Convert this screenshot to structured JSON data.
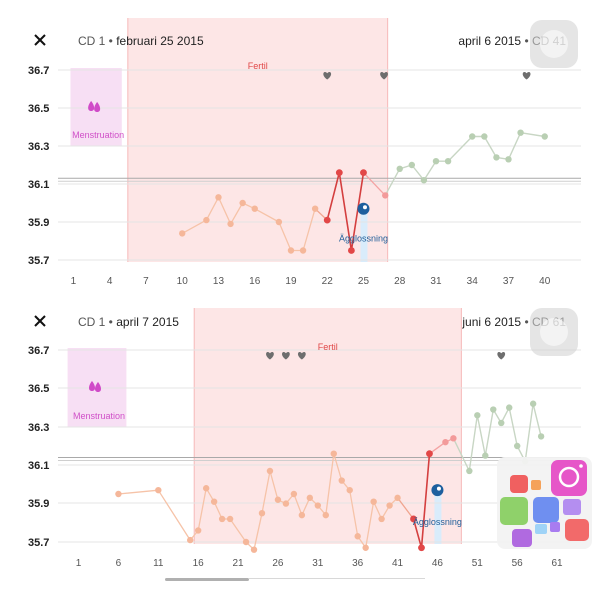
{
  "chart_data": [
    {
      "type": "line",
      "header": {
        "cd_left": "CD 1",
        "date_left": "februari 25 2015",
        "date_right": "april 6 2015",
        "cd_right": "CD 41"
      },
      "ylim": [
        35.67,
        36.78
      ],
      "yticks": [
        "36.7",
        "36.5",
        "36.3",
        "36.1",
        "35.9",
        "35.7"
      ],
      "xlim": [
        0.3,
        43
      ],
      "xticks": [
        "1",
        "4",
        "7",
        "10",
        "13",
        "16",
        "19",
        "22",
        "25",
        "28",
        "31",
        "34",
        "37",
        "40"
      ],
      "coverline": 36.13,
      "menstruation": {
        "label": "Menstruation",
        "days": [
          1,
          5
        ]
      },
      "fertile": {
        "label": "Fertil",
        "days": [
          5.5,
          27
        ]
      },
      "ovulation": {
        "label": "Ägglossning",
        "day": 25
      },
      "hearts": [
        22,
        26.7,
        38.5
      ],
      "points_pre": [
        [
          10,
          35.84
        ],
        [
          12,
          35.91
        ],
        [
          13,
          36.03
        ],
        [
          14,
          35.89
        ],
        [
          15,
          36.0
        ],
        [
          16,
          35.97
        ],
        [
          18,
          35.9
        ],
        [
          19,
          35.75
        ],
        [
          20,
          35.75
        ],
        [
          21,
          35.97
        ]
      ],
      "points_fertile": [
        [
          22,
          35.91
        ],
        [
          23,
          36.16
        ],
        [
          24,
          35.75
        ],
        [
          25,
          36.16
        ]
      ],
      "points_fertile_light": [
        [
          26.8,
          36.04
        ]
      ],
      "points_post": [
        [
          28,
          36.18
        ],
        [
          29,
          36.2
        ],
        [
          30,
          36.12
        ],
        [
          31,
          36.22
        ],
        [
          32,
          36.22
        ],
        [
          34,
          36.35
        ],
        [
          35,
          36.35
        ],
        [
          36,
          36.24
        ],
        [
          37,
          36.23
        ],
        [
          38,
          36.37
        ],
        [
          40,
          36.35
        ]
      ]
    },
    {
      "type": "line",
      "header": {
        "cd_left": "CD 1",
        "date_left": "april 7 2015",
        "date_right": "juni 6 2015",
        "cd_right": "CD 61"
      },
      "ylim": [
        35.67,
        36.78
      ],
      "yticks": [
        "36.7",
        "36.5",
        "36.3",
        "36.1",
        "35.9",
        "35.7"
      ],
      "xlim": [
        -0.7,
        64
      ],
      "xticks": [
        "1",
        "6",
        "11",
        "16",
        "21",
        "26",
        "31",
        "36",
        "41",
        "46",
        "51",
        "56",
        "61"
      ],
      "coverline": 36.14,
      "menstruation": {
        "label": "Menstruation",
        "days": [
          0,
          7
        ]
      },
      "fertile": {
        "label": "Fertil",
        "days": [
          15.5,
          49
        ]
      },
      "ovulation": {
        "label": "Ägglossning",
        "day": 46
      },
      "hearts": [
        25,
        27,
        29,
        54
      ],
      "points_pre": [
        [
          6,
          35.95
        ],
        [
          11,
          35.97
        ],
        [
          15,
          35.71
        ],
        [
          16,
          35.76
        ],
        [
          17,
          35.98
        ],
        [
          18,
          35.91
        ],
        [
          19,
          35.82
        ],
        [
          20,
          35.82
        ],
        [
          22,
          35.7
        ],
        [
          23,
          35.66
        ],
        [
          24,
          35.85
        ],
        [
          25,
          36.07
        ],
        [
          26,
          35.92
        ],
        [
          27,
          35.9
        ],
        [
          28,
          35.95
        ],
        [
          29,
          35.84
        ],
        [
          30,
          35.93
        ],
        [
          31,
          35.89
        ],
        [
          32,
          35.84
        ],
        [
          33,
          36.16
        ],
        [
          34,
          36.02
        ],
        [
          35,
          35.97
        ],
        [
          36,
          35.73
        ],
        [
          37,
          35.67
        ],
        [
          38,
          35.91
        ],
        [
          39,
          35.82
        ],
        [
          40,
          35.89
        ],
        [
          41,
          35.93
        ]
      ],
      "points_fertile": [
        [
          43,
          35.82
        ],
        [
          44,
          35.67
        ],
        [
          45,
          36.16
        ]
      ],
      "points_fertile_light": [
        [
          47,
          36.22
        ],
        [
          48,
          36.24
        ]
      ],
      "points_post": [
        [
          50,
          36.07
        ],
        [
          51,
          36.36
        ],
        [
          52,
          36.15
        ],
        [
          53,
          36.39
        ],
        [
          54,
          36.32
        ],
        [
          55,
          36.4
        ],
        [
          56,
          36.2
        ],
        [
          57,
          36.12
        ],
        [
          58,
          36.42
        ],
        [
          59,
          36.25
        ]
      ]
    }
  ]
}
